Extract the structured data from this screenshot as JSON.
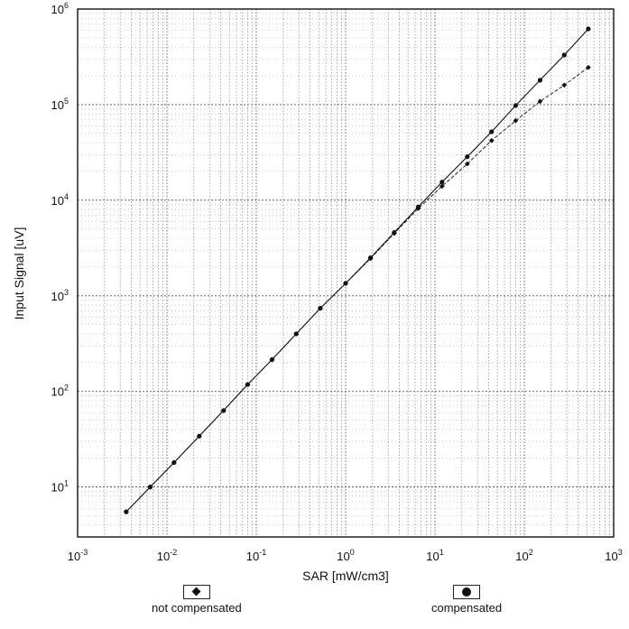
{
  "chart_data": {
    "type": "line",
    "xscale": "log",
    "yscale": "log",
    "xlabel": "SAR [mW/cm3]",
    "ylabel": "Input Signal [uV]",
    "xlim": [
      0.001,
      1000
    ],
    "ylim": [
      3,
      1000000
    ],
    "grid": true,
    "legend_position": "bottom",
    "x_ticks": [
      {
        "value": 0.001,
        "base": "10",
        "exp": "-3"
      },
      {
        "value": 0.01,
        "base": "10",
        "exp": "-2"
      },
      {
        "value": 0.1,
        "base": "10",
        "exp": "-1"
      },
      {
        "value": 1,
        "base": "10",
        "exp": "0"
      },
      {
        "value": 10,
        "base": "10",
        "exp": "1"
      },
      {
        "value": 100,
        "base": "10",
        "exp": "2"
      },
      {
        "value": 1000,
        "base": "10",
        "exp": "3"
      }
    ],
    "y_ticks": [
      {
        "value": 10,
        "base": "10",
        "exp": "1"
      },
      {
        "value": 100,
        "base": "10",
        "exp": "2"
      },
      {
        "value": 1000,
        "base": "10",
        "exp": "3"
      },
      {
        "value": 10000,
        "base": "10",
        "exp": "4"
      },
      {
        "value": 100000,
        "base": "10",
        "exp": "5"
      },
      {
        "value": 1000000,
        "base": "10",
        "exp": "6"
      }
    ],
    "series": [
      {
        "name": "not compensated",
        "marker": "diamond",
        "line_style": "dashed",
        "x": [
          0.0035,
          0.0065,
          0.012,
          0.023,
          0.043,
          0.08,
          0.15,
          0.28,
          0.52,
          1.0,
          1.9,
          3.5,
          6.5,
          12,
          23,
          43,
          80,
          150,
          280,
          520
        ],
        "y": [
          5.5,
          10,
          18,
          34,
          63,
          118,
          215,
          400,
          740,
          1350,
          2450,
          4500,
          8200,
          14000,
          24000,
          42000,
          68000,
          108000,
          160000,
          245000
        ]
      },
      {
        "name": "compensated",
        "marker": "circle",
        "line_style": "solid",
        "x": [
          0.0035,
          0.0065,
          0.012,
          0.023,
          0.043,
          0.08,
          0.15,
          0.28,
          0.52,
          1.0,
          1.9,
          3.5,
          6.5,
          12,
          23,
          43,
          80,
          150,
          280,
          520
        ],
        "y": [
          5.5,
          10,
          18,
          34,
          63,
          118,
          215,
          400,
          740,
          1350,
          2500,
          4600,
          8500,
          15500,
          28500,
          52000,
          98000,
          180000,
          330000,
          620000
        ]
      }
    ]
  },
  "legend": {
    "items": [
      {
        "label": "not compensated"
      },
      {
        "label": "compensated"
      }
    ]
  }
}
